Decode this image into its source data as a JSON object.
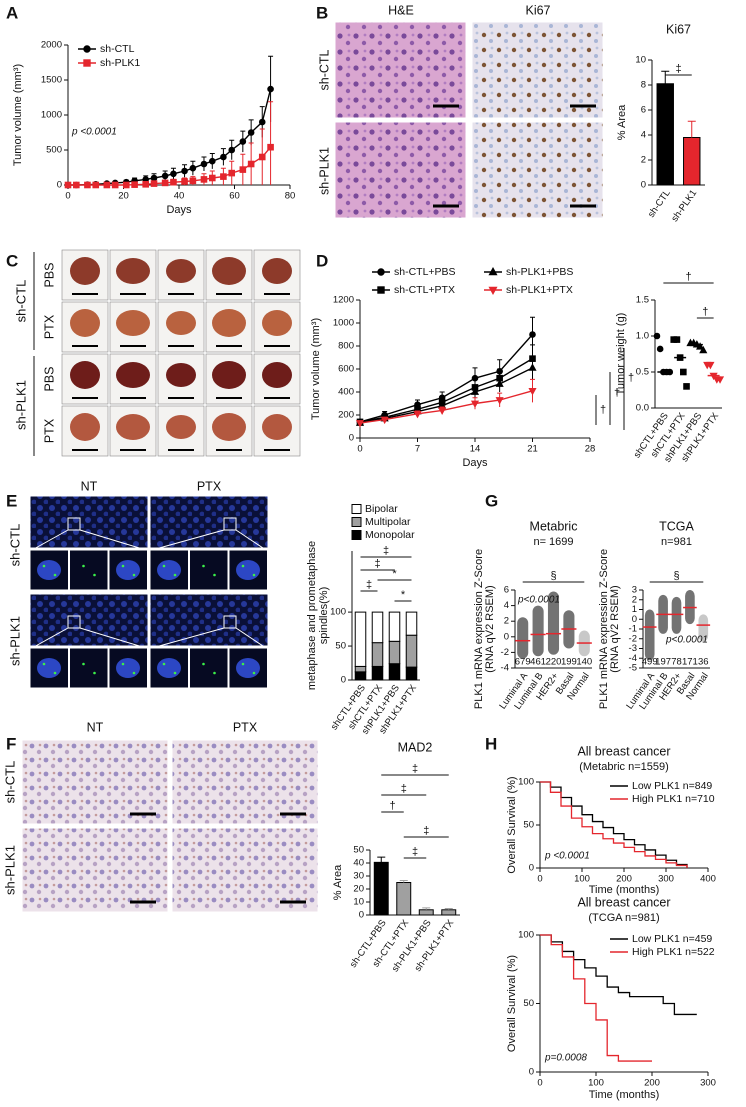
{
  "figure": {
    "panel_labels": [
      "A",
      "B",
      "C",
      "D",
      "E",
      "F",
      "G",
      "H"
    ],
    "B_images": {
      "columns": [
        "H&E",
        "Ki67"
      ],
      "rows": [
        "sh-CTL",
        "sh-PLK1"
      ]
    },
    "C_images": {
      "groups": [
        "sh-CTL",
        "sh-PLK1"
      ],
      "rows": [
        "PBS",
        "PTX",
        "PBS",
        "PTX"
      ]
    },
    "E_images": {
      "columns": [
        "NT",
        "PTX"
      ],
      "rows": [
        "sh-CTL",
        "sh-PLK1"
      ]
    },
    "F_images": {
      "columns": [
        "NT",
        "PTX"
      ],
      "rows": [
        "sh-CTL",
        "sh-PLK1"
      ]
    }
  },
  "chart_data": [
    {
      "type": "line",
      "xlabel": "Days",
      "ylabel": "Tumor volume (mm³)",
      "x": [
        0,
        3,
        7,
        10,
        14,
        17,
        21,
        24,
        28,
        31,
        35,
        38,
        42,
        45,
        49,
        52,
        56,
        59,
        63,
        66,
        70,
        73
      ],
      "series": [
        {
          "name": "sh-CTL",
          "color": "#000000",
          "marker": "circle",
          "values": [
            0,
            0,
            5,
            10,
            20,
            30,
            40,
            60,
            80,
            100,
            130,
            160,
            200,
            240,
            300,
            340,
            400,
            500,
            620,
            750,
            900,
            1370
          ],
          "errors": [
            0,
            0,
            5,
            10,
            15,
            20,
            30,
            40,
            50,
            60,
            70,
            80,
            90,
            100,
            100,
            110,
            120,
            140,
            150,
            180,
            220,
            470
          ]
        },
        {
          "name": "sh-PLK1",
          "color": "#e4262d",
          "marker": "square",
          "values": [
            0,
            0,
            0,
            0,
            0,
            0,
            0,
            5,
            10,
            20,
            30,
            40,
            50,
            60,
            80,
            100,
            120,
            170,
            220,
            300,
            400,
            540
          ],
          "errors": [
            0,
            0,
            0,
            0,
            0,
            0,
            0,
            5,
            10,
            20,
            30,
            40,
            50,
            60,
            80,
            100,
            120,
            170,
            220,
            300,
            400,
            650
          ]
        }
      ],
      "xlim": [
        0,
        80
      ],
      "xticks": [
        0,
        20,
        40,
        60,
        80
      ],
      "ylim": [
        0,
        2000
      ],
      "yticks": [
        0,
        500,
        1000,
        1500,
        2000
      ],
      "legend": "upper left",
      "annotations": [
        "p <0.0001"
      ]
    },
    {
      "type": "bar",
      "title": "Ki67",
      "ylabel": "% Area",
      "categories": [
        "sh-CTL",
        "sh-PLK1"
      ],
      "values": [
        8.1,
        3.8
      ],
      "errors": [
        1.0,
        1.3
      ],
      "colors": [
        "#000000",
        "#e4262d"
      ],
      "ylim": [
        0,
        10
      ],
      "yticks": [
        0,
        2,
        4,
        6,
        8,
        10
      ],
      "annotations": [
        "‡"
      ]
    },
    {
      "type": "line",
      "xlabel": "Days",
      "ylabel": "Tumor volume (mm³)",
      "x": [
        0,
        3,
        7,
        10,
        14,
        17,
        21
      ],
      "series": [
        {
          "name": "sh-CTL+PBS",
          "color": "#000000",
          "marker": "circle",
          "values": [
            140,
            200,
            290,
            350,
            520,
            580,
            900
          ],
          "errors": [
            20,
            30,
            40,
            50,
            90,
            100,
            150
          ]
        },
        {
          "name": "sh-PLK1+PBS",
          "color": "#000000",
          "marker": "triangle",
          "values": [
            130,
            170,
            230,
            280,
            400,
            470,
            610
          ],
          "errors": [
            20,
            25,
            30,
            40,
            60,
            70,
            100
          ]
        },
        {
          "name": "sh-CTL+PTX",
          "color": "#000000",
          "marker": "square",
          "values": [
            140,
            180,
            250,
            310,
            440,
            520,
            690
          ],
          "errors": [
            20,
            25,
            30,
            40,
            70,
            80,
            120
          ]
        },
        {
          "name": "sh-PLK1+PTX",
          "color": "#e4262d",
          "marker": "triangle-down",
          "values": [
            130,
            160,
            210,
            240,
            300,
            330,
            410
          ],
          "errors": [
            20,
            20,
            25,
            30,
            50,
            60,
            100
          ]
        }
      ],
      "xlim": [
        0,
        28
      ],
      "xticks": [
        0,
        7,
        14,
        21,
        28
      ],
      "ylim": [
        0,
        1200
      ],
      "yticks": [
        0,
        200,
        400,
        600,
        800,
        1000,
        1200
      ],
      "legend": "top",
      "annotations": [
        "†",
        "†",
        "†"
      ]
    },
    {
      "type": "dot",
      "ylabel": "Tumor weight (g)",
      "categories": [
        "shCTL+PBS",
        "shCTL+PTX",
        "shPLK1+PBS",
        "shPLK1+PTX"
      ],
      "groups": [
        [
          1.0,
          0.82,
          0.5,
          0.5,
          0.5
        ],
        [
          0.95,
          0.95,
          0.7,
          0.5,
          0.3
        ],
        [
          0.9,
          0.9,
          0.88,
          0.85,
          0.8
        ],
        [
          0.6,
          0.6,
          0.45,
          0.4,
          0.4
        ]
      ],
      "medians": [
        0.5,
        0.7,
        0.88,
        0.45
      ],
      "colors": [
        "#000000",
        "#000000",
        "#000000",
        "#e4262d"
      ],
      "markers": [
        "circle",
        "square",
        "triangle",
        "triangle-down"
      ],
      "ylim": [
        0,
        1.5
      ],
      "yticks": [
        {
          "value": 0,
          "label": "0.0"
        },
        0.5,
        {
          "value": 1,
          "label": "1.0"
        },
        1.5
      ],
      "annotations": [
        "†",
        "†"
      ]
    },
    {
      "type": "stacked-bar",
      "ylabel": [
        "metaphase and prometaphase",
        "spindles(%)"
      ],
      "categories": [
        "shCTL+PBS",
        "shCTL+PTX",
        "shPLK1+PBS",
        "shPLK1+PTX"
      ],
      "series": [
        {
          "name": "Bipolar",
          "color": "#ffffff",
          "values": [
            80,
            45,
            43,
            34
          ]
        },
        {
          "name": "Multipolar",
          "color": "#a0a0a0",
          "values": [
            8,
            35,
            33,
            47
          ]
        },
        {
          "name": "Monopolar",
          "color": "#000000",
          "values": [
            12,
            20,
            24,
            19
          ]
        }
      ],
      "ylim": [
        0,
        190
      ],
      "yticks": [
        0,
        50,
        100
      ],
      "legend": "top",
      "annotations": [
        "‡",
        "‡",
        "*",
        "‡",
        "*"
      ]
    },
    {
      "type": "strip",
      "title": "Metabric",
      "subtitle": "n= 1699",
      "ylabel": [
        "PLK1 mRNA expression Z-Score",
        "(RNA qV2 RSEM)"
      ],
      "categories": [
        "Luminal A",
        "Luminal B",
        "HER2+",
        "Basal",
        "Normal"
      ],
      "values": [
        -0.5,
        0.3,
        0.4,
        1.0,
        -0.8
      ],
      "low": [
        -2.8,
        -2.5,
        -2.3,
        -1.5,
        -2.5
      ],
      "high": [
        2.5,
        4,
        5.8,
        3.4,
        0.8
      ],
      "counts": [
        679,
        461,
        220,
        199,
        140
      ],
      "colors": [
        "#000000",
        "#000000",
        "#000000",
        "#000000",
        "#9a9a9a"
      ],
      "ylim": [
        -4,
        6
      ],
      "yticks": [
        -4,
        -2,
        0,
        2,
        4,
        6
      ],
      "annotations": [
        "§",
        "p<0.0001"
      ]
    },
    {
      "type": "strip",
      "title": "TCGA",
      "subtitle": "n=981",
      "ylabel": [
        "PLK1 mRNA expression Z-Score",
        "(RNA qV2 RSEM)"
      ],
      "categories": [
        "Luminal A",
        "Luminal B",
        "HER2+",
        "Basal",
        "Normal"
      ],
      "values": [
        -0.8,
        0.5,
        0.5,
        1.2,
        -0.6
      ],
      "low": [
        -4.2,
        -1.5,
        -1.5,
        -0.5,
        -2.3
      ],
      "high": [
        1.0,
        2.5,
        2.3,
        3.0,
        0.5
      ],
      "counts": [
        499,
        197,
        78,
        171,
        36
      ],
      "colors": [
        "#000000",
        "#000000",
        "#000000",
        "#000000",
        "#9a9a9a"
      ],
      "ylim": [
        -5,
        3
      ],
      "yticks": [
        -5,
        -4,
        -3,
        -2,
        -1,
        0,
        1,
        2,
        3
      ],
      "annotations": [
        "§",
        "p<0.0001"
      ]
    },
    {
      "type": "bar",
      "title": "MAD2",
      "ylabel": "% Area",
      "categories": [
        "sh-CTL+PBS",
        "sh-CTL+PTX",
        "sh-PLK1+PBS",
        "sh-PLK1+PTX"
      ],
      "values": [
        40.5,
        25,
        4,
        4
      ],
      "errors": [
        4,
        1.5,
        1.5,
        1
      ],
      "colors": [
        "#000000",
        "#a0a0a0",
        "#a0a0a0",
        "#a0a0a0"
      ],
      "ylim": [
        0,
        50
      ],
      "yticks": [
        0,
        10,
        20,
        30,
        40,
        50
      ],
      "annotations": [
        "‡",
        "‡",
        "†",
        "‡",
        "‡"
      ]
    },
    {
      "type": "km",
      "title": "All breast cancer",
      "subtitle": "(Metabric n=1559)",
      "xlabel": "Time (months)",
      "ylabel": "Overall Survival (%)",
      "x": [
        0,
        25,
        50,
        75,
        100,
        125,
        150,
        175,
        200,
        225,
        250,
        275,
        300,
        325,
        350
      ],
      "series": [
        {
          "name": "Low PLK1 n=849",
          "color": "#000000",
          "values": [
            100,
            94,
            82,
            72,
            62,
            54,
            47,
            40,
            33,
            27,
            21,
            15,
            9,
            4,
            0
          ]
        },
        {
          "name": "High PLK1 n=710",
          "color": "#e4262d",
          "values": [
            100,
            88,
            72,
            58,
            48,
            40,
            34,
            29,
            24,
            19,
            14,
            10,
            6,
            3,
            0
          ]
        }
      ],
      "xlim": [
        0,
        400
      ],
      "xticks": [
        0,
        100,
        200,
        300,
        400
      ],
      "ylim": [
        0,
        100
      ],
      "yticks": [
        0,
        50,
        100
      ],
      "legend": "upper right",
      "annotations": [
        "p <0.0001"
      ]
    },
    {
      "type": "km",
      "title": "All breast cancer",
      "subtitle": "(TCGA n=981)",
      "xlabel": "Time (months)",
      "ylabel": "Overall Survival (%)",
      "x": [
        0,
        20,
        40,
        60,
        80,
        100,
        120,
        140,
        160,
        180,
        200,
        220,
        240,
        260,
        280
      ],
      "series": [
        {
          "name": "Low PLK1 n=459",
          "color": "#000000",
          "values": [
            100,
            95,
            88,
            82,
            76,
            70,
            62,
            58,
            55,
            55,
            55,
            50,
            42,
            42,
            42
          ]
        },
        {
          "name": "High PLK1 n=522",
          "color": "#e4262d",
          "values": [
            100,
            93,
            84,
            68,
            50,
            38,
            12,
            8,
            8,
            8,
            8,
            null,
            null,
            null,
            null
          ]
        }
      ],
      "xlim": [
        0,
        300
      ],
      "xticks": [
        0,
        100,
        200,
        300
      ],
      "ylim": [
        0,
        100
      ],
      "yticks": [
        0,
        50,
        100
      ],
      "legend": "upper right",
      "annotations": [
        "p=0.0008"
      ]
    }
  ]
}
